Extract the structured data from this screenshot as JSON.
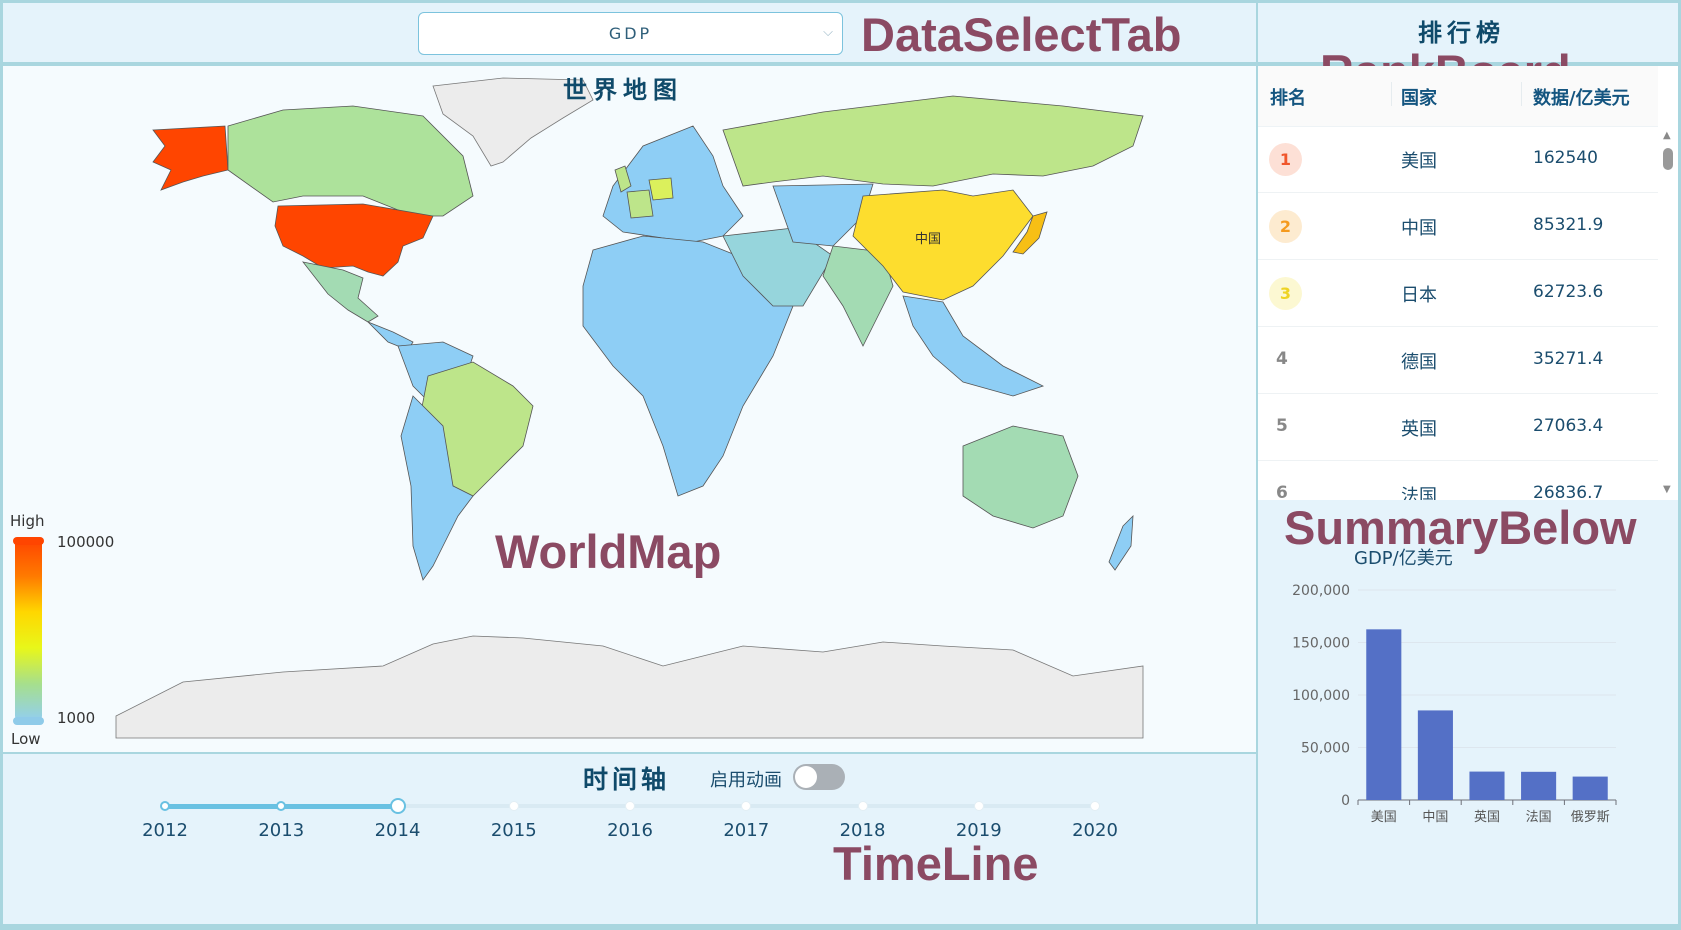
{
  "data_select": {
    "selected": "GDP",
    "chevron_icon": "chevron-down-icon"
  },
  "overlay_labels": {
    "data_select_tab": "DataSelectTab",
    "rank_board": "RankBoard",
    "world_map": "WorldMap",
    "summary_below": "SummaryBelow",
    "time_line": "TimeLine"
  },
  "map": {
    "title": "世界地图",
    "highlight_label": "中国",
    "legend": {
      "high": "High",
      "low": "Low",
      "max": "100000",
      "min": "1000"
    },
    "colors": {
      "top1": "#ff4500",
      "top2": "#fddd2e",
      "top3": "#f7bf15",
      "mid": "#bde58a",
      "low_mid": "#a3dbb3",
      "low": "#8ecef5",
      "no_data": "#ececec"
    }
  },
  "timeline": {
    "title": "时间轴",
    "animation_label": "启用动画",
    "animation_enabled": false,
    "years": [
      "2012",
      "2013",
      "2014",
      "2015",
      "2016",
      "2017",
      "2018",
      "2019",
      "2020"
    ],
    "current_year": "2014"
  },
  "rank_board": {
    "title": "排行榜",
    "columns": [
      "排名",
      "国家",
      "数据/亿美元"
    ],
    "rows": [
      {
        "rank": "1",
        "country": "美国",
        "value": "162540"
      },
      {
        "rank": "2",
        "country": "中国",
        "value": "85321.9"
      },
      {
        "rank": "3",
        "country": "日本",
        "value": "62723.6"
      },
      {
        "rank": "4",
        "country": "德国",
        "value": "35271.4"
      },
      {
        "rank": "5",
        "country": "英国",
        "value": "27063.4"
      },
      {
        "rank": "6",
        "country": "法国",
        "value": "26836.7"
      }
    ],
    "badge_colors": {
      "1": "#f0562b",
      "2": "#f59a1e",
      "3": "#eed323"
    }
  },
  "chart_data": {
    "type": "bar",
    "title": "GDP/亿美元",
    "categories": [
      "美国",
      "中国",
      "英国",
      "法国",
      "俄罗斯"
    ],
    "values": [
      162540,
      85322,
      27063,
      26837,
      22300
    ],
    "ylim": [
      0,
      200000
    ],
    "yticks": [
      "0",
      "50,000",
      "100,000",
      "150,000",
      "200,000"
    ],
    "bar_color": "#5470c6"
  }
}
